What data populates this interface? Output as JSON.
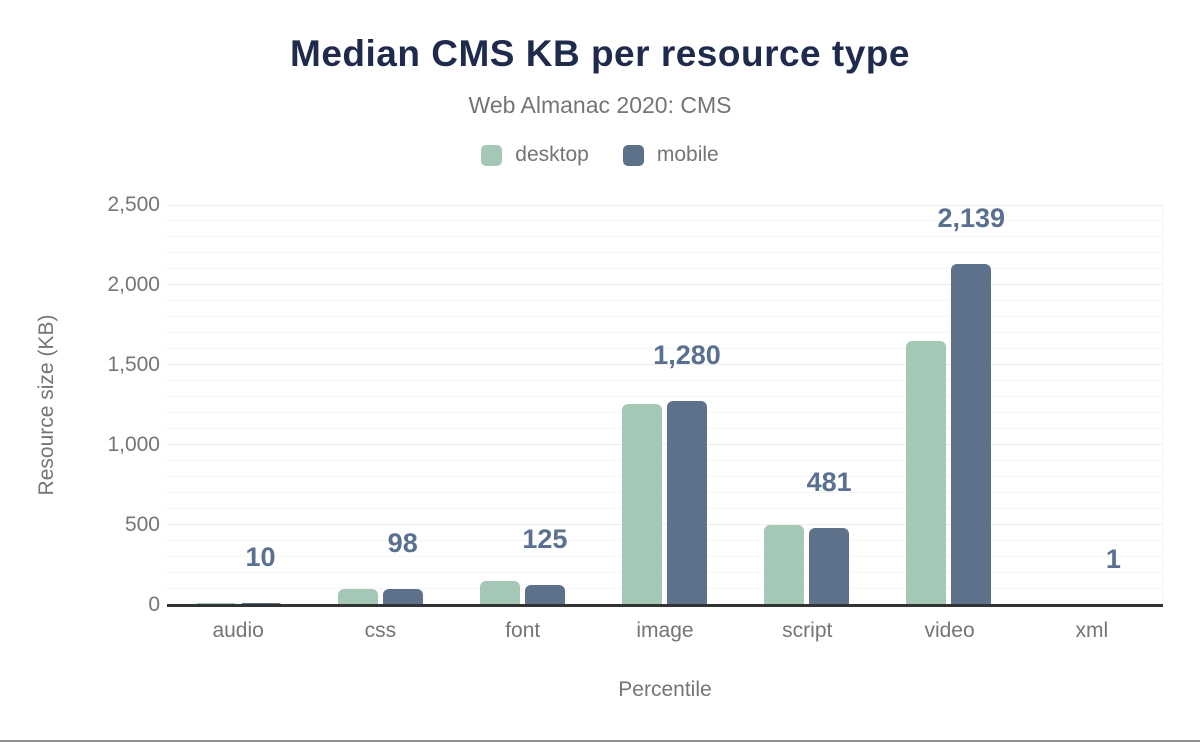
{
  "chart_data": {
    "type": "bar",
    "title": "Median CMS KB per resource type",
    "subtitle": "Web Almanac 2020: CMS",
    "xlabel": "Percentile",
    "ylabel": "Resource size (KB)",
    "categories": [
      "audio",
      "css",
      "font",
      "image",
      "script",
      "video",
      "xml"
    ],
    "series": [
      {
        "name": "desktop",
        "color": "#a4c8b5",
        "values": [
          13,
          103,
          151,
          1261,
          500,
          1655,
          1
        ]
      },
      {
        "name": "mobile",
        "color": "#5e718a",
        "values": [
          10,
          98,
          125,
          1280,
          481,
          2139,
          1
        ]
      }
    ],
    "data_labels": {
      "on_series": "mobile",
      "values": [
        "10",
        "98",
        "125",
        "1,280",
        "481",
        "2,139",
        "1"
      ]
    },
    "ylim": [
      0,
      2500
    ],
    "yticks": [
      {
        "value": 0,
        "label": "0"
      },
      {
        "value": 500,
        "label": "500"
      },
      {
        "value": 1000,
        "label": "1,000"
      },
      {
        "value": 1500,
        "label": "1,500"
      },
      {
        "value": 2000,
        "label": "2,000"
      },
      {
        "value": 2500,
        "label": "2,500"
      }
    ],
    "grid": {
      "major_interval": 500,
      "minor_interval": 100,
      "orientation": "horizontal"
    },
    "legend_position": "top"
  },
  "colors": {
    "title_text": "#1e2b4c",
    "muted_text": "#757575",
    "data_label_text": "#5a7090",
    "axis_line": "#333333",
    "gridline_major": "#ececec",
    "gridline_minor": "#f6f6f6",
    "desktop_bar": "#a4c8b5",
    "mobile_bar": "#5e718a"
  }
}
